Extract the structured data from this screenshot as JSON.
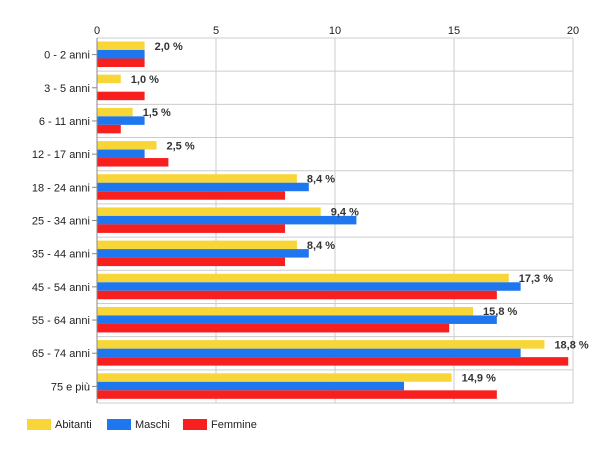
{
  "chart_data": {
    "type": "bar",
    "orientation": "horizontal",
    "categories": [
      "0 - 2 anni",
      "3 - 5 anni",
      "6 - 11 anni",
      "12 - 17 anni",
      "18 - 24 anni",
      "25 - 34 anni",
      "35 - 44 anni",
      "45 - 54 anni",
      "55 - 64 anni",
      "65 - 74 anni",
      "75 e più"
    ],
    "series": [
      {
        "name": "Abitanti",
        "color": "#f9d637",
        "values": [
          2.0,
          1.0,
          1.5,
          2.5,
          8.4,
          9.4,
          8.4,
          17.3,
          15.8,
          18.8,
          14.9
        ]
      },
      {
        "name": "Maschi",
        "color": "#1f77f0",
        "values": [
          2.0,
          0,
          2.0,
          2.0,
          8.9,
          10.9,
          8.9,
          17.8,
          16.8,
          17.8,
          12.9
        ]
      },
      {
        "name": "Femmine",
        "color": "#f81f1f",
        "values": [
          2.0,
          2.0,
          1.0,
          3.0,
          7.9,
          7.9,
          7.9,
          16.8,
          14.8,
          19.8,
          16.8
        ]
      }
    ],
    "data_labels": [
      "2,0 %",
      "1,0 %",
      "1,5 %",
      "2,5 %",
      "8,4 %",
      "9,4 %",
      "8,4 %",
      "17,3 %",
      "15,8 %",
      "18,8 %",
      "14,9 %"
    ],
    "x_ticks": [
      "0",
      "5",
      "10",
      "15",
      "20"
    ],
    "xlim": [
      0,
      20
    ],
    "grid": true,
    "x_axis_position": "top",
    "legend_position": "bottom-left"
  }
}
